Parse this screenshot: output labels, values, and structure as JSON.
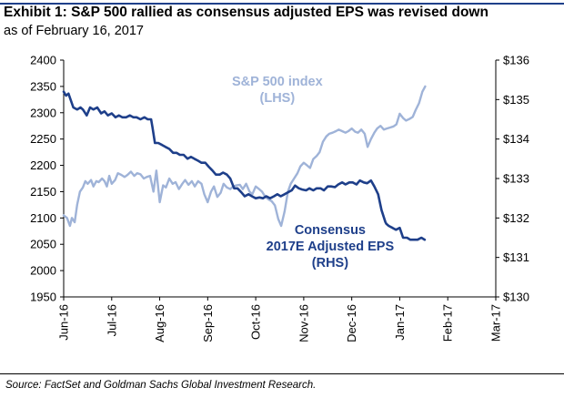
{
  "title": "Exhibit 1: S&P 500 rallied as consensus adjusted EPS was revised down",
  "subtitle": "as of February 16, 2017",
  "source": "Source: FactSet and Goldman Sachs Global Investment Research.",
  "chart_data": {
    "type": "line",
    "categories": [
      "Jun-16",
      "Jul-16",
      "Aug-16",
      "Sep-16",
      "Oct-16",
      "Nov-16",
      "Dec-16",
      "Jan-17",
      "Feb-17",
      "Mar-17"
    ],
    "xlim_months": [
      0,
      9
    ],
    "yleft": {
      "ylim": [
        1950,
        2400
      ],
      "ticks": [
        "1950",
        "2000",
        "2050",
        "2100",
        "2150",
        "2200",
        "2250",
        "2300",
        "2350",
        "2400"
      ]
    },
    "yright": {
      "ylim": [
        130,
        136
      ],
      "ticks": [
        "$130",
        "$131",
        "$132",
        "$133",
        "$134",
        "$135",
        "$136"
      ]
    },
    "grid": false,
    "series": [
      {
        "name": "S&P 500 index (LHS)",
        "label_lines": [
          "S&P 500 index",
          "(LHS)"
        ],
        "axis": "left",
        "color": "#9fb3d8",
        "x": [
          0,
          0.07,
          0.13,
          0.17,
          0.23,
          0.28,
          0.34,
          0.4,
          0.45,
          0.5,
          0.57,
          0.62,
          0.68,
          0.73,
          0.8,
          0.85,
          0.9,
          0.95,
          1.0,
          1.07,
          1.13,
          1.2,
          1.27,
          1.33,
          1.4,
          1.47,
          1.53,
          1.6,
          1.67,
          1.73,
          1.8,
          1.87,
          1.93,
          2.0,
          2.07,
          2.13,
          2.2,
          2.27,
          2.33,
          2.4,
          2.47,
          2.53,
          2.6,
          2.67,
          2.73,
          2.8,
          2.87,
          2.93,
          3.0,
          3.07,
          3.13,
          3.2,
          3.27,
          3.33,
          3.4,
          3.47,
          3.53,
          3.6,
          3.67,
          3.73,
          3.8,
          3.87,
          3.93,
          4.0,
          4.07,
          4.13,
          4.2,
          4.27,
          4.33,
          4.4,
          4.47,
          4.53,
          4.6,
          4.67,
          4.73,
          4.8,
          4.87,
          4.93,
          5.0,
          5.07,
          5.13,
          5.2,
          5.27,
          5.33,
          5.4,
          5.47,
          5.53,
          5.6,
          5.67,
          5.73,
          5.8,
          5.87,
          5.93,
          6.0,
          6.07,
          6.13,
          6.2,
          6.27,
          6.33,
          6.4,
          6.47,
          6.53,
          6.6,
          6.67,
          6.73,
          6.8,
          6.87,
          6.93,
          7.0,
          7.07,
          7.13,
          7.2,
          7.27,
          7.33,
          7.4,
          7.47,
          7.53
        ],
        "values": [
          2105,
          2100,
          2085,
          2100,
          2092,
          2125,
          2150,
          2158,
          2170,
          2165,
          2172,
          2160,
          2170,
          2168,
          2175,
          2170,
          2160,
          2180,
          2165,
          2172,
          2185,
          2182,
          2178,
          2182,
          2188,
          2180,
          2185,
          2183,
          2175,
          2178,
          2180,
          2150,
          2190,
          2130,
          2162,
          2158,
          2175,
          2165,
          2168,
          2155,
          2165,
          2172,
          2163,
          2170,
          2160,
          2170,
          2165,
          2145,
          2130,
          2150,
          2160,
          2140,
          2148,
          2165,
          2158,
          2155,
          2160,
          2162,
          2163,
          2155,
          2165,
          2150,
          2145,
          2160,
          2155,
          2150,
          2140,
          2135,
          2132,
          2124,
          2098,
          2085,
          2112,
          2150,
          2165,
          2175,
          2185,
          2198,
          2205,
          2200,
          2195,
          2212,
          2218,
          2225,
          2245,
          2255,
          2260,
          2262,
          2265,
          2268,
          2265,
          2262,
          2265,
          2270,
          2264,
          2262,
          2268,
          2260,
          2235,
          2250,
          2262,
          2270,
          2275,
          2268,
          2270,
          2272,
          2274,
          2278,
          2298,
          2290,
          2285,
          2288,
          2292,
          2305,
          2318,
          2340,
          2350
        ]
      },
      {
        "name": "Consensus 2017E Adjusted EPS (RHS)",
        "label_lines": [
          "Consensus",
          "2017E Adjusted EPS",
          "(RHS)"
        ],
        "axis": "right",
        "color": "#1e3f8a",
        "x": [
          0,
          0.05,
          0.1,
          0.2,
          0.28,
          0.35,
          0.4,
          0.48,
          0.55,
          0.62,
          0.7,
          0.78,
          0.85,
          0.92,
          1.0,
          1.08,
          1.15,
          1.22,
          1.3,
          1.38,
          1.45,
          1.52,
          1.6,
          1.68,
          1.75,
          1.82,
          1.85,
          1.9,
          1.97,
          2.05,
          2.12,
          2.2,
          2.28,
          2.35,
          2.42,
          2.5,
          2.58,
          2.65,
          2.72,
          2.8,
          2.87,
          2.95,
          3.02,
          3.1,
          3.17,
          3.25,
          3.32,
          3.4,
          3.47,
          3.55,
          3.62,
          3.7,
          3.77,
          3.85,
          3.92,
          4.0,
          4.08,
          4.15,
          4.22,
          4.3,
          4.38,
          4.45,
          4.52,
          4.6,
          4.67,
          4.75,
          4.82,
          4.9,
          4.97,
          5.05,
          5.12,
          5.2,
          5.27,
          5.35,
          5.42,
          5.5,
          5.57,
          5.65,
          5.72,
          5.8,
          5.87,
          5.95,
          6.02,
          6.1,
          6.17,
          6.25,
          6.32,
          6.4,
          6.47,
          6.55,
          6.62,
          6.7,
          6.72,
          6.77,
          6.85,
          6.92,
          7.0,
          7.07,
          7.15,
          7.22,
          7.3,
          7.37,
          7.45,
          7.52
        ],
        "values": [
          135.2,
          135.1,
          135.15,
          134.8,
          134.75,
          134.8,
          134.75,
          134.6,
          134.8,
          134.75,
          134.8,
          134.65,
          134.7,
          134.6,
          134.65,
          134.55,
          134.6,
          134.55,
          134.55,
          134.6,
          134.55,
          134.55,
          134.5,
          134.55,
          134.5,
          134.5,
          134.3,
          133.9,
          133.9,
          133.85,
          133.8,
          133.75,
          133.65,
          133.65,
          133.6,
          133.6,
          133.5,
          133.55,
          133.5,
          133.45,
          133.4,
          133.4,
          133.3,
          133.2,
          133.1,
          133.1,
          133.15,
          133.1,
          133.0,
          132.75,
          132.75,
          132.65,
          132.55,
          132.6,
          132.55,
          132.5,
          132.52,
          132.5,
          132.55,
          132.5,
          132.55,
          132.6,
          132.55,
          132.6,
          132.65,
          132.7,
          132.82,
          132.75,
          132.72,
          132.7,
          132.75,
          132.7,
          132.75,
          132.75,
          132.7,
          132.8,
          132.8,
          132.78,
          132.85,
          132.9,
          132.85,
          132.9,
          132.9,
          132.85,
          132.95,
          132.9,
          132.88,
          132.95,
          132.8,
          132.6,
          132.2,
          131.9,
          131.85,
          131.8,
          131.75,
          131.7,
          131.75,
          131.5,
          131.5,
          131.45,
          131.45,
          131.45,
          131.5,
          131.45
        ]
      }
    ]
  }
}
